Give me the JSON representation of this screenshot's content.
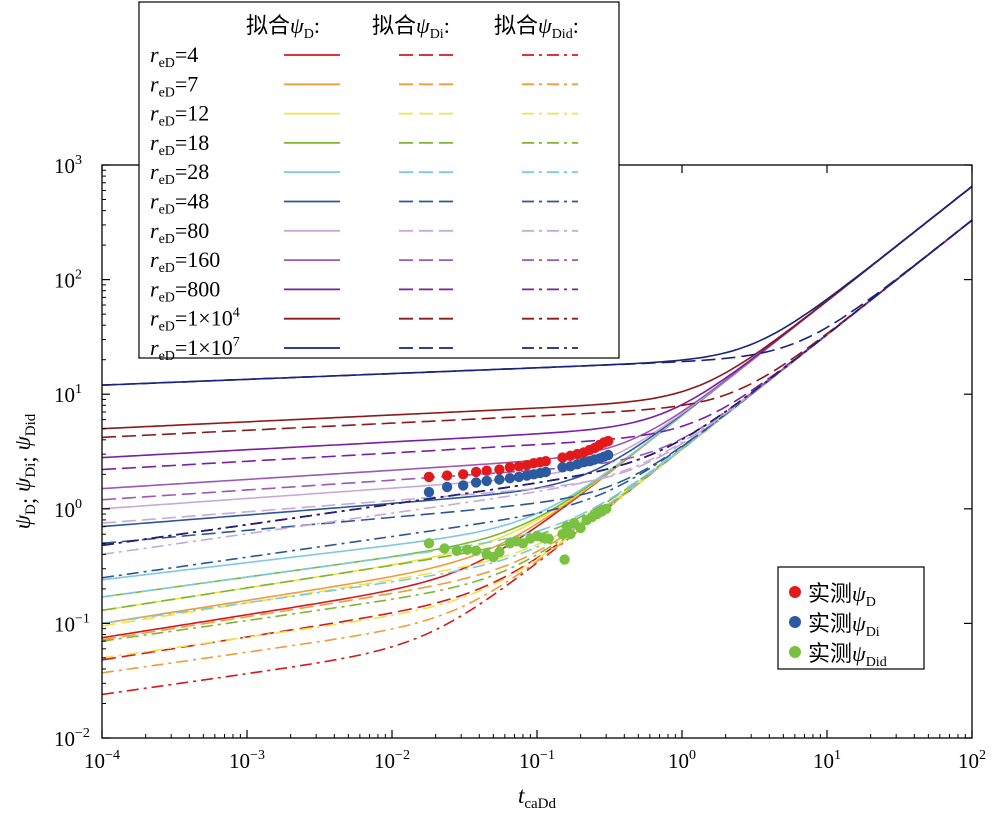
{
  "chart_data": {
    "type": "line",
    "x_scale": "log",
    "y_scale": "log",
    "xlim": [
      0.0001,
      100
    ],
    "ylim": [
      0.01,
      1000
    ],
    "xlabel": "t",
    "xlabel_sub": "caDd",
    "ylabel_parts": [
      {
        "sym": "ψ",
        "sub": "D"
      },
      {
        "sym": "ψ",
        "sub": "Di"
      },
      {
        "sym": "ψ",
        "sub": "Did"
      }
    ],
    "ylabel_sep": ";",
    "x_ticks": [
      {
        "base": "10",
        "exp": "−4",
        "value": 0.0001
      },
      {
        "base": "10",
        "exp": "−3",
        "value": 0.001
      },
      {
        "base": "10",
        "exp": "−2",
        "value": 0.01
      },
      {
        "base": "10",
        "exp": "−1",
        "value": 0.1
      },
      {
        "base": "10",
        "exp": "0",
        "value": 1
      },
      {
        "base": "10",
        "exp": "1",
        "value": 10
      },
      {
        "base": "10",
        "exp": "2",
        "value": 100
      }
    ],
    "y_ticks": [
      {
        "base": "10",
        "exp": "−2",
        "value": 0.01
      },
      {
        "base": "10",
        "exp": "−1",
        "value": 0.1
      },
      {
        "base": "10",
        "exp": "0",
        "value": 1
      },
      {
        "base": "10",
        "exp": "1",
        "value": 10
      },
      {
        "base": "10",
        "exp": "2",
        "value": 100
      },
      {
        "base": "10",
        "exp": "3",
        "value": 1000
      }
    ],
    "fit_legend": {
      "headers": [
        {
          "prefix": "拟合",
          "sym": "ψ",
          "sub": "D",
          "suffix": ":"
        },
        {
          "prefix": "拟合",
          "sym": "ψ",
          "sub": "Di",
          "suffix": ":"
        },
        {
          "prefix": "拟合",
          "sym": "ψ",
          "sub": "Did",
          "suffix": ":"
        }
      ],
      "label_sym": "r",
      "label_sub": "eD",
      "styles": [
        "solid",
        "dashed",
        "dashdot"
      ]
    },
    "series": [
      {
        "label": "=4",
        "sup": "",
        "color": "#d7191c",
        "psiD_start": 0.075,
        "psiDi_start": 0.048,
        "psiDid_start": 0.024
      },
      {
        "label": "=7",
        "sup": "",
        "color": "#ee9d3c",
        "psiD_start": 0.1,
        "psiDi_start": 0.072,
        "psiDid_start": 0.037
      },
      {
        "label": "=12",
        "sup": "",
        "color": "#f0e442",
        "psiD_start": 0.13,
        "psiDi_start": 0.095,
        "psiDid_start": 0.05
      },
      {
        "label": "=18",
        "sup": "",
        "color": "#7cb82f",
        "psiD_start": 0.17,
        "psiDi_start": 0.13,
        "psiDid_start": 0.07
      },
      {
        "label": "=28",
        "sup": "",
        "color": "#80c8e0",
        "psiD_start": 0.24,
        "psiDi_start": 0.17,
        "psiDid_start": 0.1
      },
      {
        "label": "=48",
        "sup": "",
        "color": "#2b5797",
        "psiD_start": 0.7,
        "psiDi_start": 0.5,
        "psiDid_start": 0.25
      },
      {
        "label": "=80",
        "sup": "",
        "color": "#c9a9d6",
        "psiD_start": 1.0,
        "psiDi_start": 0.75,
        "psiDid_start": 0.4
      },
      {
        "label": "=160",
        "sup": "",
        "color": "#9b59b6",
        "psiD_start": 1.5,
        "psiDi_start": 1.2,
        "psiDid_start": 0.48
      },
      {
        "label": "=800",
        "sup": "",
        "color": "#7a1fa2",
        "psiD_start": 2.8,
        "psiDi_start": 2.2,
        "psiDid_start": 0.48
      },
      {
        "label": "=1×10",
        "sup": "4",
        "color": "#8b1a1a",
        "psiD_start": 5.0,
        "psiDi_start": 4.2,
        "psiDid_start": 0.48
      },
      {
        "label": "=1×10",
        "sup": "7",
        "color": "#1a237e",
        "psiD_start": 12,
        "psiDi_start": 12,
        "psiDid_start": 0.48
      }
    ],
    "late_time": {
      "psiD_at_100": 650,
      "psiDi_at_100": 330,
      "psiDid_at_100": 330
    },
    "measured_legend": [
      {
        "prefix": "实测",
        "sym": "ψ",
        "sub": "D",
        "color": "#e31a1c"
      },
      {
        "prefix": "实测",
        "sym": "ψ",
        "sub": "Di",
        "color": "#2c5aa0"
      },
      {
        "prefix": "实测",
        "sym": "ψ",
        "sub": "Did",
        "color": "#7ac142"
      }
    ],
    "measured": {
      "psiD": {
        "color": "#e31a1c",
        "points": [
          [
            0.018,
            1.9
          ],
          [
            0.024,
            1.95
          ],
          [
            0.031,
            2.0
          ],
          [
            0.038,
            2.1
          ],
          [
            0.045,
            2.15
          ],
          [
            0.055,
            2.2
          ],
          [
            0.065,
            2.3
          ],
          [
            0.075,
            2.35
          ],
          [
            0.085,
            2.4
          ],
          [
            0.095,
            2.5
          ],
          [
            0.105,
            2.55
          ],
          [
            0.115,
            2.6
          ],
          [
            0.15,
            2.8
          ],
          [
            0.17,
            2.9
          ],
          [
            0.19,
            3.0
          ],
          [
            0.21,
            3.1
          ],
          [
            0.23,
            3.25
          ],
          [
            0.25,
            3.4
          ],
          [
            0.27,
            3.6
          ],
          [
            0.29,
            3.8
          ],
          [
            0.31,
            3.9
          ]
        ]
      },
      "psiDi": {
        "color": "#2c5aa0",
        "points": [
          [
            0.018,
            1.4
          ],
          [
            0.024,
            1.55
          ],
          [
            0.031,
            1.6
          ],
          [
            0.038,
            1.7
          ],
          [
            0.045,
            1.75
          ],
          [
            0.055,
            1.8
          ],
          [
            0.065,
            1.85
          ],
          [
            0.075,
            1.9
          ],
          [
            0.085,
            1.95
          ],
          [
            0.095,
            2.0
          ],
          [
            0.105,
            2.05
          ],
          [
            0.115,
            2.1
          ],
          [
            0.15,
            2.3
          ],
          [
            0.17,
            2.35
          ],
          [
            0.19,
            2.45
          ],
          [
            0.21,
            2.55
          ],
          [
            0.23,
            2.6
          ],
          [
            0.25,
            2.7
          ],
          [
            0.27,
            2.75
          ],
          [
            0.29,
            2.85
          ],
          [
            0.31,
            2.95
          ]
        ]
      },
      "psiDid": {
        "color": "#7ac142",
        "points": [
          [
            0.018,
            0.5
          ],
          [
            0.023,
            0.45
          ],
          [
            0.028,
            0.43
          ],
          [
            0.033,
            0.44
          ],
          [
            0.038,
            0.43
          ],
          [
            0.045,
            0.4
          ],
          [
            0.05,
            0.38
          ],
          [
            0.055,
            0.42
          ],
          [
            0.065,
            0.5
          ],
          [
            0.072,
            0.52
          ],
          [
            0.08,
            0.5
          ],
          [
            0.09,
            0.55
          ],
          [
            0.1,
            0.58
          ],
          [
            0.11,
            0.56
          ],
          [
            0.12,
            0.55
          ],
          [
            0.15,
            0.6
          ],
          [
            0.155,
            0.36
          ],
          [
            0.16,
            0.7
          ],
          [
            0.17,
            0.6
          ],
          [
            0.18,
            0.75
          ],
          [
            0.2,
            0.68
          ],
          [
            0.22,
            0.8
          ],
          [
            0.24,
            0.85
          ],
          [
            0.26,
            0.9
          ],
          [
            0.28,
            0.95
          ],
          [
            0.3,
            1.0
          ]
        ]
      }
    }
  }
}
